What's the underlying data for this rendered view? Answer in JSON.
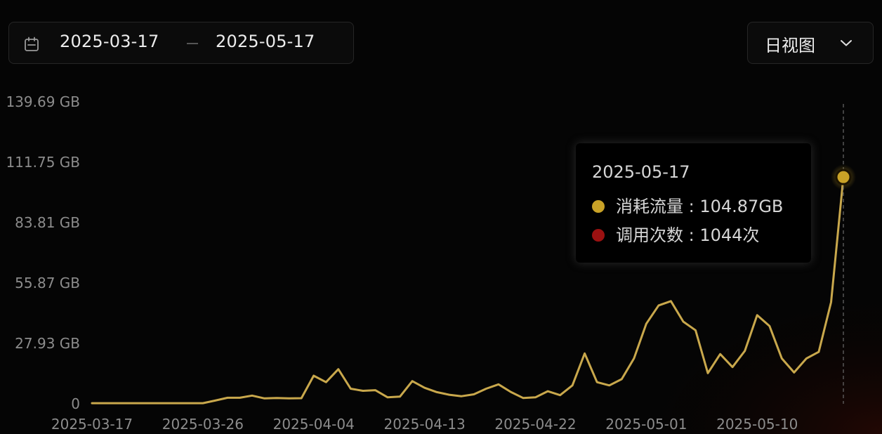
{
  "filters": {
    "date_start": "2025-03-17",
    "date_end": "2025-05-17",
    "view_mode": "日视图",
    "calendar_icon": "calendar-icon",
    "chevron_icon": "chevron-down-icon"
  },
  "tooltip": {
    "date": "2025-05-17",
    "items": [
      {
        "label": "消耗流量",
        "value": "104.87GB",
        "color": "#c9a227"
      },
      {
        "label": "调用次数",
        "value": "1044次",
        "color": "#9b1111"
      }
    ]
  },
  "colors": {
    "line": "#c9a84c",
    "background": "#050505",
    "axis_text": "#8c8c8c"
  },
  "chart_data": {
    "type": "line",
    "ylim": [
      0,
      139.69
    ],
    "y_ticks": [
      "0",
      "27.93 GB",
      "55.87 GB",
      "83.81 GB",
      "111.75 GB",
      "139.69 GB"
    ],
    "x_ticks": [
      "2025-03-17",
      "2025-03-26",
      "2025-04-04",
      "2025-04-13",
      "2025-04-22",
      "2025-05-01",
      "2025-05-10"
    ],
    "highlight_date": "2025-05-17",
    "series": [
      {
        "name": "消耗流量",
        "x": [
          "2025-03-17",
          "2025-03-18",
          "2025-03-19",
          "2025-03-20",
          "2025-03-21",
          "2025-03-22",
          "2025-03-23",
          "2025-03-24",
          "2025-03-25",
          "2025-03-26",
          "2025-03-27",
          "2025-03-28",
          "2025-03-29",
          "2025-03-30",
          "2025-03-31",
          "2025-04-01",
          "2025-04-02",
          "2025-04-03",
          "2025-04-04",
          "2025-04-05",
          "2025-04-06",
          "2025-04-07",
          "2025-04-08",
          "2025-04-09",
          "2025-04-10",
          "2025-04-11",
          "2025-04-12",
          "2025-04-13",
          "2025-04-14",
          "2025-04-15",
          "2025-04-16",
          "2025-04-17",
          "2025-04-18",
          "2025-04-19",
          "2025-04-20",
          "2025-04-21",
          "2025-04-22",
          "2025-04-23",
          "2025-04-24",
          "2025-04-25",
          "2025-04-26",
          "2025-04-27",
          "2025-04-28",
          "2025-04-29",
          "2025-04-30",
          "2025-05-01",
          "2025-05-02",
          "2025-05-03",
          "2025-05-04",
          "2025-05-05",
          "2025-05-06",
          "2025-05-07",
          "2025-05-08",
          "2025-05-09",
          "2025-05-10",
          "2025-05-11",
          "2025-05-12",
          "2025-05-13",
          "2025-05-14",
          "2025-05-15",
          "2025-05-16",
          "2025-05-17"
        ],
        "values": [
          0.3,
          0.3,
          0.3,
          0.3,
          0.3,
          0.3,
          0.3,
          0.3,
          0.3,
          0.3,
          1.5,
          2.8,
          2.8,
          3.8,
          2.5,
          2.7,
          2.5,
          2.6,
          13.0,
          10.0,
          16.0,
          7.0,
          6.0,
          6.3,
          3.0,
          3.3,
          10.5,
          7.4,
          5.4,
          4.2,
          3.5,
          4.4,
          7.0,
          9.0,
          5.5,
          2.7,
          3.0,
          5.8,
          4.0,
          8.5,
          23.3,
          10.0,
          8.5,
          11.4,
          21.0,
          37.0,
          45.5,
          47.5,
          38.0,
          34.0,
          14.2,
          23.0,
          17.0,
          24.5,
          41.0,
          36.0,
          21.0,
          14.5,
          21.0,
          24.0,
          47.0,
          104.87
        ]
      }
    ]
  }
}
